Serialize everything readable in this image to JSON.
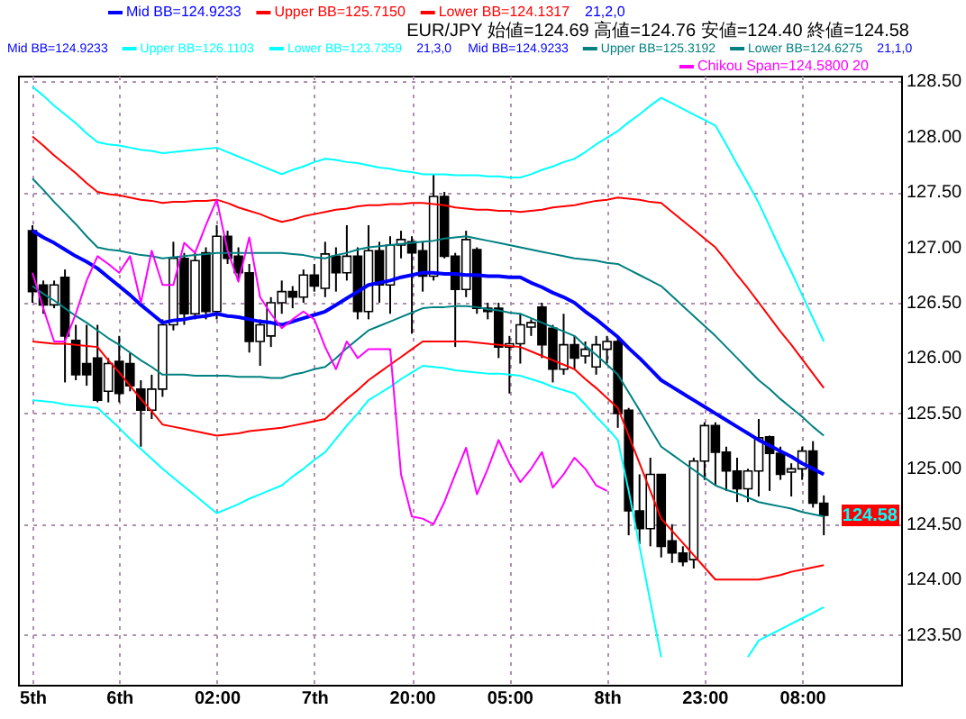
{
  "chart_data": {
    "type": "candlestick",
    "categories": [
      "5th",
      null,
      null,
      null,
      null,
      null,
      null,
      null,
      "6th",
      null,
      null,
      null,
      null,
      null,
      null,
      null,
      null,
      "02:00",
      null,
      null,
      null,
      null,
      null,
      null,
      null,
      null,
      "7th",
      null,
      null,
      null,
      null,
      null,
      null,
      null,
      null,
      "20:00",
      null,
      null,
      null,
      null,
      null,
      null,
      null,
      null,
      "05:00",
      null,
      null,
      null,
      null,
      null,
      null,
      null,
      null,
      "8th",
      null,
      null,
      null,
      null,
      null,
      null,
      null,
      null,
      "23:00",
      null,
      null,
      null,
      null,
      null,
      null,
      null,
      null,
      "08:00",
      null,
      null
    ],
    "ohlc": [
      [
        127.15,
        127.2,
        126.5,
        126.6
      ],
      [
        126.66,
        126.7,
        126.4,
        126.48
      ],
      [
        126.48,
        126.7,
        126.45,
        126.66
      ],
      [
        126.73,
        126.8,
        125.78,
        126.2
      ],
      [
        126.16,
        126.3,
        125.8,
        125.85
      ],
      [
        125.95,
        126.3,
        125.75,
        125.85
      ],
      [
        126.0,
        126.3,
        125.6,
        125.62
      ],
      [
        125.7,
        126.0,
        125.6,
        125.95
      ],
      [
        125.97,
        126.2,
        125.6,
        125.68
      ],
      [
        125.95,
        126.05,
        125.7,
        125.75
      ],
      [
        125.72,
        125.8,
        125.2,
        125.53
      ],
      [
        125.53,
        125.85,
        125.45,
        125.72
      ],
      [
        125.72,
        126.35,
        125.65,
        126.3
      ],
      [
        126.3,
        127.05,
        126.25,
        126.9
      ],
      [
        126.9,
        126.95,
        126.3,
        126.4
      ],
      [
        126.4,
        126.95,
        126.35,
        126.88
      ],
      [
        126.95,
        127.0,
        126.35,
        126.42
      ],
      [
        126.42,
        127.2,
        126.35,
        127.1
      ],
      [
        127.1,
        127.15,
        126.85,
        126.9
      ],
      [
        126.92,
        127.0,
        126.7,
        126.77
      ],
      [
        126.77,
        126.85,
        126.05,
        126.15
      ],
      [
        126.15,
        126.35,
        125.93,
        126.3
      ],
      [
        126.2,
        126.55,
        126.1,
        126.5
      ],
      [
        126.5,
        126.7,
        126.4,
        126.6
      ],
      [
        126.6,
        126.65,
        126.45,
        126.55
      ],
      [
        126.55,
        126.8,
        126.5,
        126.75
      ],
      [
        126.75,
        126.85,
        126.6,
        126.65
      ],
      [
        126.63,
        127.05,
        126.55,
        126.94
      ],
      [
        126.92,
        127.0,
        126.6,
        126.77
      ],
      [
        126.77,
        127.2,
        126.7,
        126.92
      ],
      [
        126.92,
        127.0,
        126.35,
        126.42
      ],
      [
        126.42,
        127.2,
        126.35,
        126.97
      ],
      [
        126.97,
        127.05,
        126.5,
        126.66
      ],
      [
        126.66,
        127.1,
        126.4,
        127.02
      ],
      [
        127.02,
        127.15,
        126.9,
        127.07
      ],
      [
        127.05,
        127.1,
        126.22,
        126.95
      ],
      [
        126.97,
        127.05,
        126.6,
        126.74
      ],
      [
        126.74,
        127.66,
        126.7,
        127.46
      ],
      [
        127.46,
        127.5,
        126.9,
        126.92
      ],
      [
        126.92,
        126.95,
        126.1,
        126.62
      ],
      [
        126.62,
        127.15,
        126.55,
        127.07
      ],
      [
        126.98,
        127.0,
        126.4,
        126.45
      ],
      [
        126.45,
        126.5,
        126.35,
        126.42
      ],
      [
        126.45,
        126.5,
        126.0,
        126.1
      ],
      [
        126.1,
        126.2,
        125.68,
        126.13
      ],
      [
        126.13,
        126.4,
        125.95,
        126.3
      ],
      [
        126.28,
        126.35,
        126.2,
        126.32
      ],
      [
        126.46,
        126.5,
        126.0,
        126.12
      ],
      [
        126.27,
        126.3,
        125.78,
        125.9
      ],
      [
        125.9,
        126.4,
        125.85,
        126.12
      ],
      [
        126.12,
        126.2,
        125.9,
        126.0
      ],
      [
        126.02,
        126.15,
        125.95,
        126.08
      ],
      [
        125.92,
        126.2,
        125.85,
        126.12
      ],
      [
        126.08,
        126.2,
        125.95,
        126.15
      ],
      [
        126.15,
        126.2,
        125.37,
        125.5
      ],
      [
        125.53,
        125.55,
        124.4,
        124.62
      ],
      [
        124.62,
        124.95,
        124.32,
        124.46
      ],
      [
        124.46,
        125.1,
        124.3,
        124.95
      ],
      [
        124.95,
        124.95,
        124.2,
        124.3
      ],
      [
        124.35,
        124.5,
        124.15,
        124.24
      ],
      [
        124.24,
        124.3,
        124.12,
        124.16
      ],
      [
        124.18,
        125.1,
        124.1,
        125.07
      ],
      [
        125.07,
        125.42,
        124.9,
        125.39
      ],
      [
        125.39,
        125.42,
        124.85,
        125.15
      ],
      [
        125.15,
        125.2,
        124.8,
        124.98
      ],
      [
        124.98,
        125.1,
        124.7,
        124.82
      ],
      [
        124.82,
        125.0,
        124.7,
        124.98
      ],
      [
        124.98,
        125.45,
        124.75,
        125.28
      ],
      [
        125.29,
        125.3,
        124.8,
        125.14
      ],
      [
        125.14,
        125.2,
        124.9,
        124.95
      ],
      [
        124.97,
        125.05,
        124.75,
        125.0
      ],
      [
        125.0,
        125.2,
        124.9,
        125.16
      ],
      [
        125.16,
        125.25,
        124.65,
        124.69
      ],
      [
        124.69,
        124.76,
        124.4,
        124.58
      ]
    ],
    "series": [
      {
        "name": "Mid BB=124.9233",
        "color": "#0000ff",
        "type": "line",
        "values": [
          127.15,
          127.09,
          127.04,
          126.98,
          126.92,
          126.87,
          126.81,
          126.73,
          126.65,
          126.57,
          126.48,
          126.4,
          126.32,
          126.34,
          126.35,
          126.37,
          126.38,
          126.4,
          126.38,
          126.37,
          126.35,
          126.33,
          126.32,
          126.3,
          126.33,
          126.36,
          126.39,
          126.42,
          126.48,
          126.54,
          126.6,
          126.66,
          126.68,
          126.7,
          126.73,
          126.75,
          126.77,
          126.77,
          126.76,
          126.76,
          126.75,
          126.75,
          126.74,
          126.74,
          126.73,
          126.73,
          126.68,
          126.64,
          126.59,
          126.55,
          126.5,
          126.42,
          126.35,
          126.27,
          126.19,
          126.09,
          126.0,
          125.9,
          125.8,
          125.74,
          125.68,
          125.62,
          125.56,
          125.5,
          125.44,
          125.38,
          125.32,
          125.26,
          125.21,
          125.16,
          125.11,
          125.05,
          125.0,
          124.95
        ]
      },
      {
        "name": "Upper BB=125.7150",
        "color": "#ff0000",
        "type": "line",
        "values": [
          128.0,
          127.92,
          127.83,
          127.75,
          127.67,
          127.58,
          127.5,
          127.48,
          127.47,
          127.45,
          127.43,
          127.42,
          127.4,
          127.41,
          127.41,
          127.42,
          127.42,
          127.43,
          127.4,
          127.36,
          127.33,
          127.3,
          127.26,
          127.23,
          127.25,
          127.28,
          127.3,
          127.32,
          127.34,
          127.35,
          127.37,
          127.38,
          127.38,
          127.39,
          127.39,
          127.4,
          127.4,
          127.39,
          127.38,
          127.36,
          127.35,
          127.34,
          127.34,
          127.33,
          127.33,
          127.32,
          127.33,
          127.34,
          127.36,
          127.37,
          127.38,
          127.4,
          127.42,
          127.43,
          127.45,
          127.44,
          127.43,
          127.41,
          127.4,
          127.32,
          127.24,
          127.16,
          127.08,
          127.0,
          126.88,
          126.75,
          126.63,
          126.5,
          126.37,
          126.24,
          126.12,
          125.99,
          125.86,
          125.73
        ]
      },
      {
        "name": "Lower BB=124.1317",
        "color": "#ff0000",
        "type": "line",
        "values": [
          126.15,
          126.14,
          126.13,
          126.13,
          126.12,
          126.11,
          126.1,
          125.98,
          125.87,
          125.75,
          125.63,
          125.52,
          125.4,
          125.38,
          125.36,
          125.34,
          125.32,
          125.3,
          125.31,
          125.32,
          125.34,
          125.35,
          125.36,
          125.37,
          125.39,
          125.41,
          125.43,
          125.45,
          125.54,
          125.63,
          125.71,
          125.8,
          125.87,
          125.94,
          126.01,
          126.08,
          126.15,
          126.15,
          126.15,
          126.15,
          126.15,
          126.14,
          126.13,
          126.12,
          126.11,
          126.1,
          126.06,
          126.02,
          125.98,
          125.94,
          125.9,
          125.81,
          125.73,
          125.64,
          125.55,
          125.3,
          125.05,
          124.8,
          124.55,
          124.44,
          124.33,
          124.22,
          124.11,
          124.0,
          124.0,
          124.0,
          124.0,
          124.0,
          124.02,
          124.04,
          124.07,
          124.09,
          124.11,
          124.13
        ]
      },
      {
        "name": "Upper BB=126.1103",
        "color": "#00ffff",
        "type": "line",
        "values": [
          128.45,
          128.37,
          128.28,
          128.2,
          128.12,
          128.03,
          127.95,
          127.93,
          127.92,
          127.9,
          127.88,
          127.87,
          127.85,
          127.86,
          127.87,
          127.88,
          127.89,
          127.9,
          127.86,
          127.82,
          127.78,
          127.74,
          127.7,
          127.66,
          127.7,
          127.73,
          127.77,
          127.8,
          127.79,
          127.77,
          127.76,
          127.74,
          127.72,
          127.71,
          127.69,
          127.68,
          127.66,
          127.66,
          127.66,
          127.65,
          127.65,
          127.65,
          127.64,
          127.64,
          127.63,
          127.63,
          127.66,
          127.7,
          127.73,
          127.77,
          127.8,
          127.86,
          127.93,
          127.99,
          128.05,
          128.13,
          128.2,
          128.28,
          128.35,
          128.3,
          128.25,
          128.2,
          128.15,
          128.1,
          127.93,
          127.75,
          127.58,
          127.4,
          127.19,
          126.98,
          126.78,
          126.57,
          126.36,
          126.15
        ]
      },
      {
        "name": "Lower BB=123.7359",
        "color": "#00ffff",
        "type": "line",
        "values": [
          125.62,
          125.61,
          125.6,
          125.58,
          125.57,
          125.56,
          125.55,
          125.46,
          125.37,
          125.27,
          125.18,
          125.09,
          125.0,
          124.92,
          124.84,
          124.76,
          124.68,
          124.6,
          124.64,
          124.68,
          124.73,
          124.77,
          124.81,
          124.85,
          124.93,
          125.0,
          125.08,
          125.15,
          125.27,
          125.39,
          125.5,
          125.62,
          125.68,
          125.74,
          125.81,
          125.87,
          125.93,
          125.92,
          125.91,
          125.89,
          125.88,
          125.87,
          125.86,
          125.86,
          125.85,
          125.84,
          125.81,
          125.78,
          125.74,
          125.71,
          125.68,
          125.58,
          125.47,
          125.37,
          125.26,
          124.8,
          124.3,
          123.8,
          123.3,
          null,
          null,
          null,
          null,
          null,
          null,
          null,
          123.3,
          123.45,
          123.5,
          123.55,
          123.6,
          123.65,
          123.7,
          123.75
        ]
      },
      {
        "name": "Upper BB=125.3192",
        "color": "#008080",
        "type": "line",
        "values": [
          127.62,
          127.52,
          127.41,
          127.31,
          127.21,
          127.1,
          127.0,
          126.98,
          126.97,
          126.95,
          126.93,
          126.92,
          126.9,
          126.91,
          126.92,
          126.93,
          126.94,
          126.95,
          126.95,
          126.95,
          126.95,
          126.95,
          126.95,
          126.95,
          126.94,
          126.93,
          126.91,
          126.9,
          126.93,
          126.95,
          126.98,
          127.0,
          127.01,
          127.02,
          127.03,
          127.04,
          127.05,
          127.06,
          127.08,
          127.09,
          127.1,
          127.08,
          127.06,
          127.04,
          127.02,
          127.0,
          126.98,
          126.96,
          126.94,
          126.92,
          126.9,
          126.89,
          126.88,
          126.86,
          126.85,
          126.8,
          126.75,
          126.7,
          126.65,
          126.56,
          126.47,
          126.38,
          126.29,
          126.2,
          126.1,
          126.0,
          125.9,
          125.8,
          125.72,
          125.63,
          125.55,
          125.47,
          125.38,
          125.3
        ]
      },
      {
        "name": "Lower BB=124.6275",
        "color": "#008080",
        "type": "line",
        "values": [
          126.65,
          126.58,
          126.52,
          126.45,
          126.38,
          126.32,
          126.25,
          126.18,
          126.12,
          126.05,
          125.98,
          125.92,
          125.85,
          125.85,
          125.85,
          125.84,
          125.84,
          125.84,
          125.84,
          125.83,
          125.83,
          125.83,
          125.82,
          125.82,
          125.85,
          125.87,
          125.9,
          125.92,
          126.0,
          126.09,
          126.17,
          126.25,
          126.29,
          126.33,
          126.37,
          126.41,
          126.45,
          126.46,
          126.46,
          126.47,
          126.47,
          126.46,
          126.44,
          126.43,
          126.41,
          126.4,
          126.36,
          126.32,
          126.28,
          126.24,
          126.2,
          126.11,
          126.03,
          125.94,
          125.85,
          125.69,
          125.53,
          125.36,
          125.2,
          125.13,
          125.06,
          124.99,
          124.92,
          124.85,
          124.81,
          124.78,
          124.74,
          124.7,
          124.68,
          124.66,
          124.64,
          124.61,
          124.59,
          124.57
        ]
      },
      {
        "name": "Chikou Span=124.5800 20",
        "color": "#ff00ff",
        "type": "line",
        "values": [
          126.77,
          126.45,
          126.15,
          126.15,
          126.4,
          126.7,
          126.92,
          126.85,
          126.77,
          126.92,
          126.5,
          126.97,
          126.66,
          126.66,
          127.04,
          126.95,
          127.2,
          127.43,
          126.97,
          126.69,
          127.09,
          126.55,
          126.4,
          126.27,
          126.35,
          126.42,
          126.35,
          126.1,
          125.9,
          126.15,
          126.0,
          126.08,
          126.08,
          126.08,
          124.95,
          124.57,
          124.55,
          124.5,
          124.7,
          124.95,
          125.19,
          124.77,
          125.0,
          125.26,
          125.05,
          124.88,
          125.0,
          125.15,
          124.83,
          124.95,
          125.1,
          125.0,
          124.85,
          124.8,
          null,
          null,
          null,
          null,
          null,
          null,
          null,
          null,
          null,
          null,
          null,
          null,
          null,
          null,
          null,
          null,
          null,
          null,
          null,
          null
        ]
      }
    ],
    "annotations": [
      "21,2,0",
      "EUR/JPY 始値=124.69 高値=124.76 安値=124.40 終値=124.58",
      "Mid BB=124.9233",
      "21,3,0",
      "Mid BB=124.9233",
      "21,1,0",
      "124.58"
    ],
    "ylim": [
      123.05,
      128.55
    ],
    "yticks": [
      {
        "value": 123.5,
        "label": "123.50"
      },
      {
        "value": 124,
        "label": "124.00"
      },
      {
        "value": 124.5,
        "label": "124.50"
      },
      {
        "value": 125,
        "label": "125.00"
      },
      {
        "value": 125.5,
        "label": "125.50"
      },
      {
        "value": 126,
        "label": "126.00"
      },
      {
        "value": 126.5,
        "label": "126.50"
      },
      {
        "value": 127,
        "label": "127.00"
      },
      {
        "value": 127.5,
        "label": "127.50"
      },
      {
        "value": 128,
        "label": "128.00"
      },
      {
        "value": 128.5,
        "label": "128.50"
      }
    ],
    "grid": true,
    "legend": "top"
  }
}
